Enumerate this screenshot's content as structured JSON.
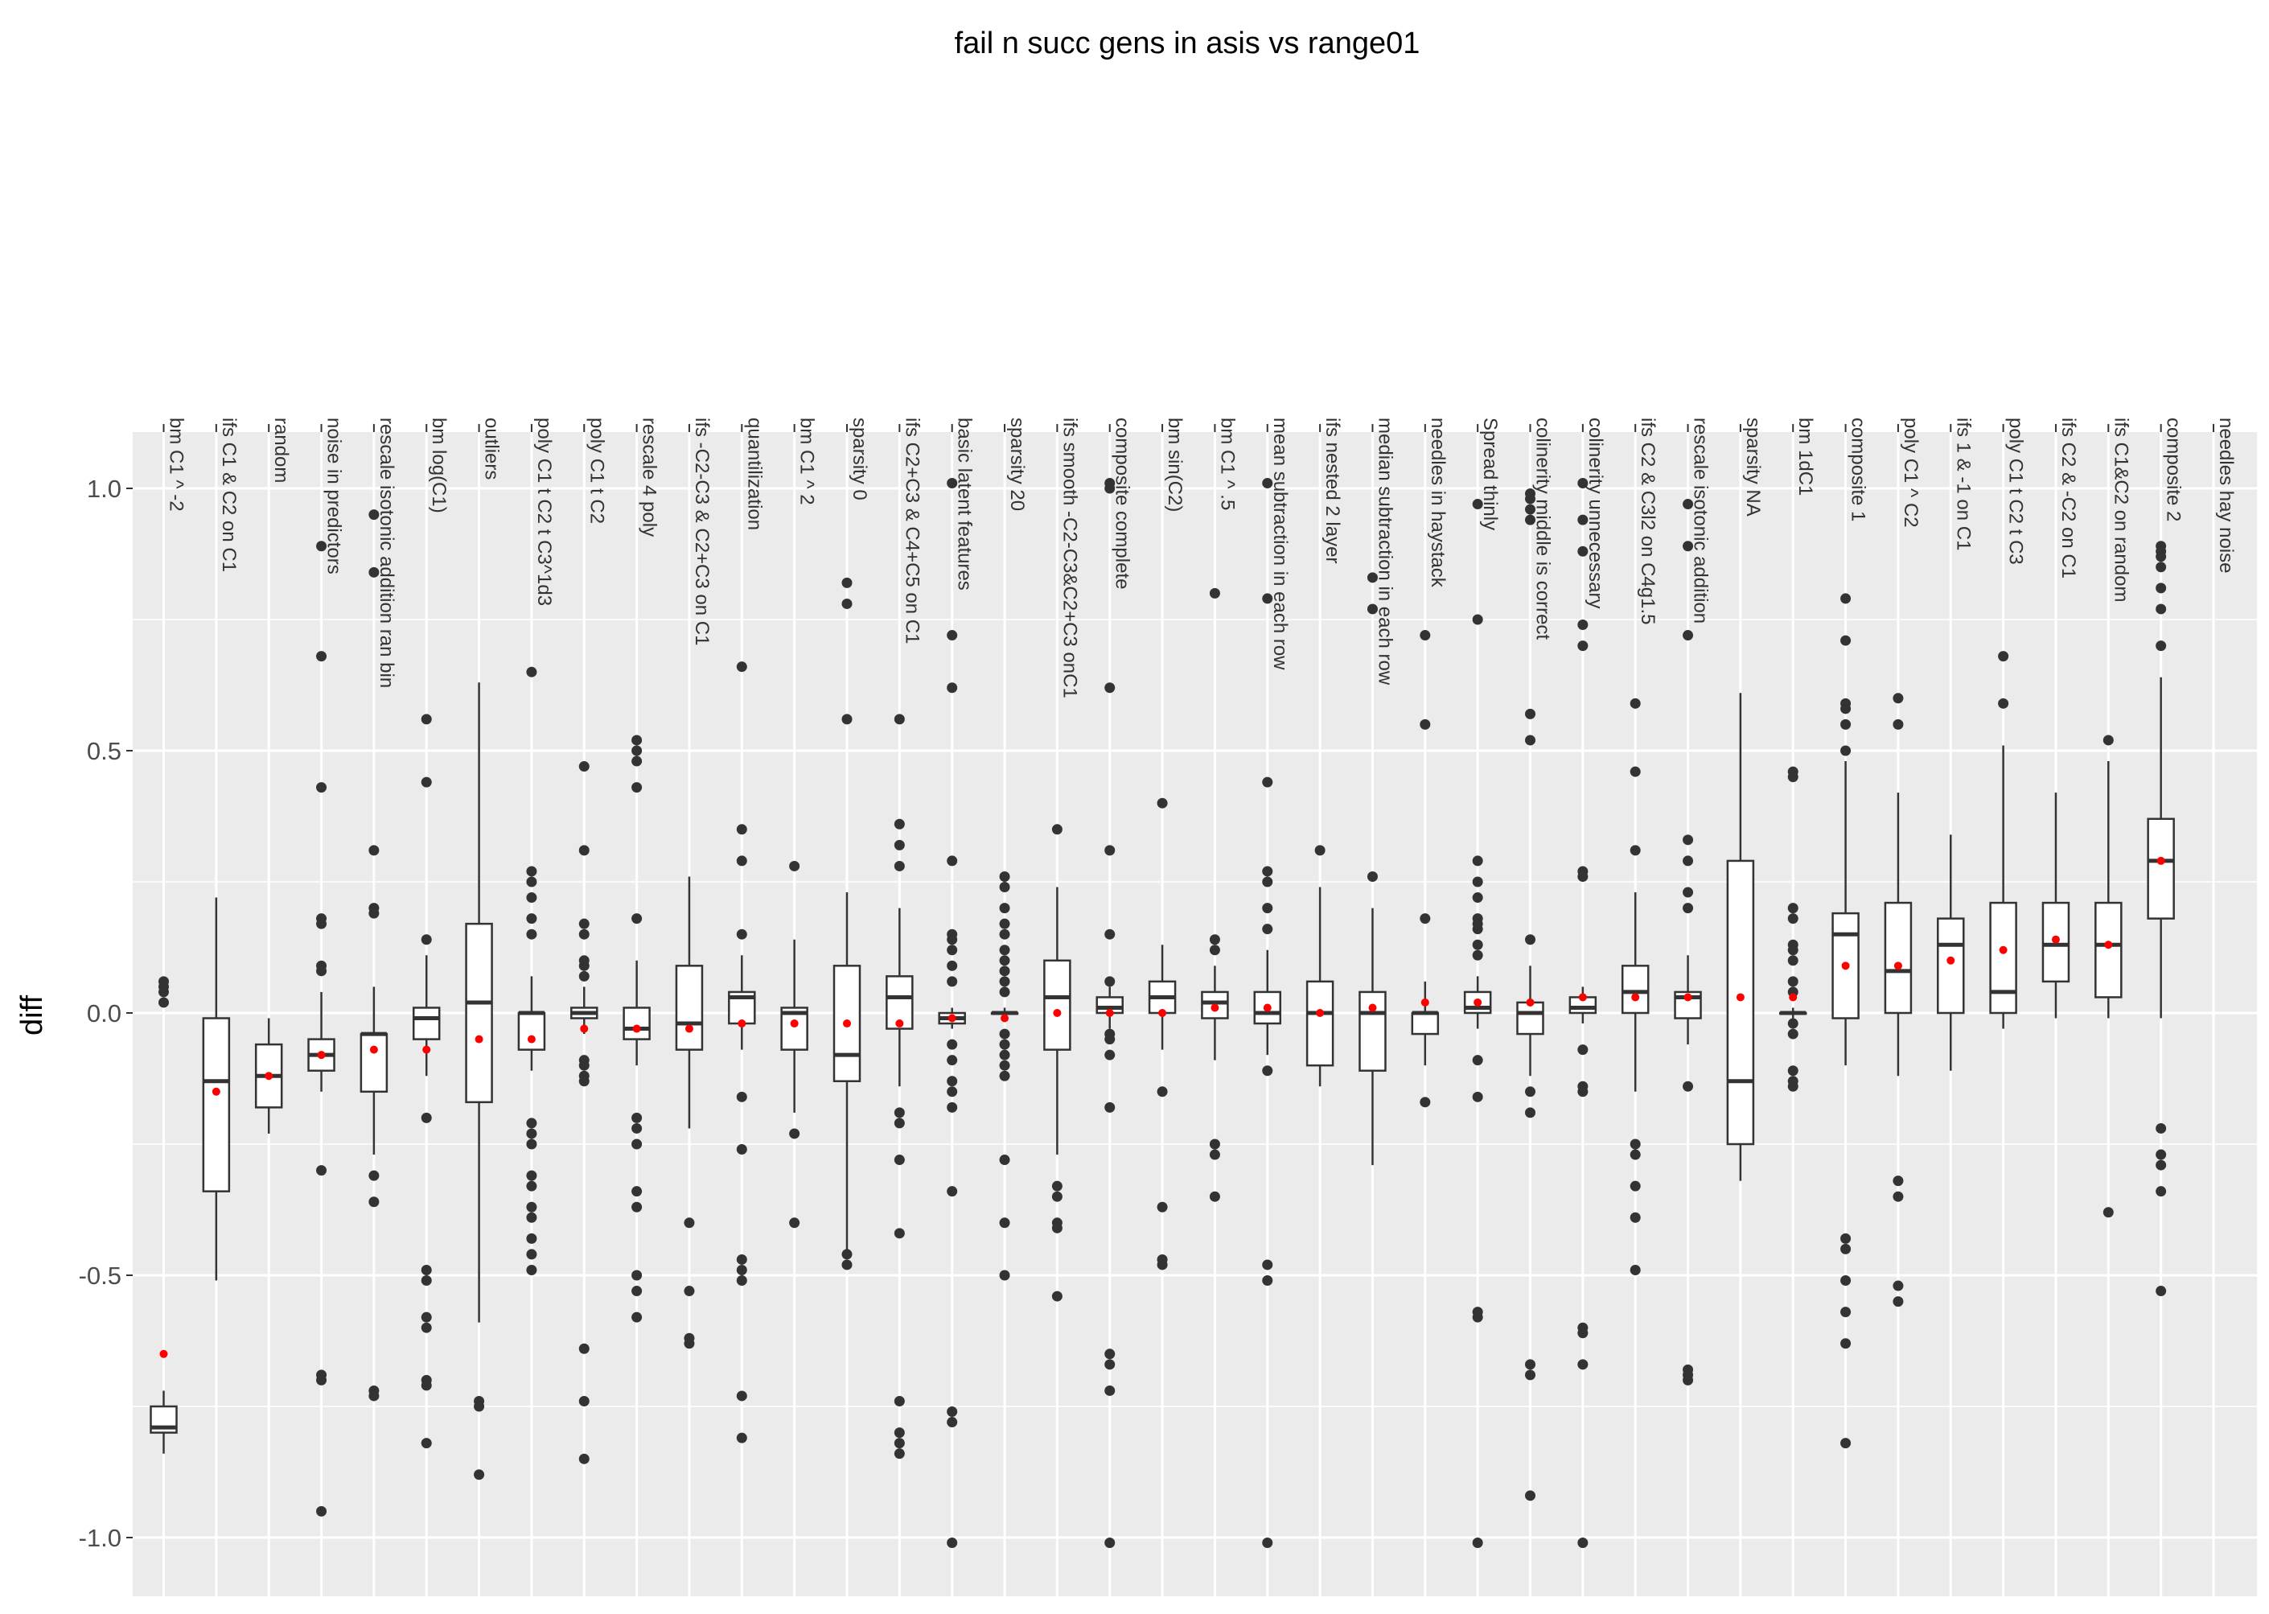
{
  "chart_data": {
    "type": "boxplot",
    "title": "fail n succ gens in asis vs range01",
    "ylabel": "diff",
    "xlabel": "",
    "ylim": [
      -1.07,
      1.08
    ],
    "yticks": [
      1.0,
      0.5,
      0.0,
      -0.5,
      -1.0
    ],
    "ytick_labels": [
      "1.0",
      "0.5",
      "0.0",
      "-0.5",
      "-1.0"
    ],
    "x_axis_position": "top",
    "grid": true,
    "colors": {
      "panel": "#ebebeb",
      "grid": "#ffffff",
      "box_fill": "#ffffff",
      "box_line": "#333333",
      "outlier": "#333333",
      "mean": "#ff0000"
    },
    "categories": [
      {
        "label": "bm C1 ^ -2",
        "q1": -0.8,
        "median": -0.79,
        "q3": -0.75,
        "lo": -0.84,
        "hi": -0.72,
        "mean": -0.65,
        "outliers": [
          0.06,
          0.05,
          0.04,
          0.02
        ]
      },
      {
        "label": "ifs C1 & C2 on C1",
        "q1": -0.34,
        "median": -0.13,
        "q3": -0.01,
        "lo": -0.51,
        "hi": 0.22,
        "mean": -0.15,
        "outliers": []
      },
      {
        "label": "random",
        "q1": -0.18,
        "median": -0.12,
        "q3": -0.06,
        "lo": -0.23,
        "hi": -0.01,
        "mean": -0.12,
        "outliers": []
      },
      {
        "label": "noise in predictors",
        "q1": -0.11,
        "median": -0.08,
        "q3": -0.05,
        "lo": -0.15,
        "hi": 0.04,
        "mean": -0.08,
        "outliers": [
          0.89,
          0.68,
          0.43,
          0.18,
          0.17,
          0.09,
          0.08,
          -0.3,
          -0.69,
          -0.7,
          -0.95
        ]
      },
      {
        "label": "rescale isotonic addition ran bin",
        "q1": -0.15,
        "median": -0.04,
        "q3": -0.04,
        "lo": -0.27,
        "hi": 0.05,
        "mean": -0.07,
        "outliers": [
          0.95,
          0.84,
          0.31,
          0.2,
          0.19,
          -0.31,
          -0.36,
          -0.72,
          -0.73
        ]
      },
      {
        "label": "bm log(C1)",
        "q1": -0.05,
        "median": -0.01,
        "q3": 0.01,
        "lo": -0.12,
        "hi": 0.11,
        "mean": -0.07,
        "outliers": [
          0.56,
          0.44,
          0.14,
          -0.2,
          -0.49,
          -0.51,
          -0.58,
          -0.6,
          -0.7,
          -0.71,
          -0.82
        ]
      },
      {
        "label": "outliers",
        "q1": -0.17,
        "median": 0.02,
        "q3": 0.17,
        "lo": -0.59,
        "hi": 0.63,
        "mean": -0.05,
        "outliers": [
          -0.74,
          -0.75,
          -0.88
        ]
      },
      {
        "label": "poly C1 t C2 t C3^1d3",
        "q1": -0.07,
        "median": 0.0,
        "q3": 0.0,
        "lo": -0.11,
        "hi": 0.07,
        "mean": -0.05,
        "outliers": [
          0.65,
          0.27,
          0.25,
          0.22,
          0.18,
          0.15,
          -0.21,
          -0.23,
          -0.25,
          -0.31,
          -0.33,
          -0.37,
          -0.39,
          -0.43,
          -0.46,
          -0.49
        ]
      },
      {
        "label": "poly C1 t C2",
        "q1": -0.01,
        "median": 0.0,
        "q3": 0.01,
        "lo": -0.04,
        "hi": 0.05,
        "mean": -0.03,
        "outliers": [
          0.47,
          0.31,
          0.17,
          0.15,
          0.1,
          0.09,
          0.07,
          -0.09,
          -0.1,
          -0.12,
          -0.13,
          -0.64,
          -0.74,
          -0.85
        ]
      },
      {
        "label": "rescale 4 poly",
        "q1": -0.05,
        "median": -0.03,
        "q3": 0.01,
        "lo": -0.1,
        "hi": 0.1,
        "mean": -0.03,
        "outliers": [
          0.52,
          0.5,
          0.48,
          0.43,
          0.18,
          -0.2,
          -0.22,
          -0.25,
          -0.34,
          -0.37,
          -0.5,
          -0.53,
          -0.58
        ]
      },
      {
        "label": "ifs -C2-C3 & C2+C3 on C1",
        "q1": -0.07,
        "median": -0.02,
        "q3": 0.09,
        "lo": -0.22,
        "hi": 0.26,
        "mean": -0.03,
        "outliers": [
          -0.4,
          -0.53,
          -0.62,
          -0.63
        ]
      },
      {
        "label": "quantilization",
        "q1": -0.02,
        "median": 0.03,
        "q3": 0.04,
        "lo": -0.07,
        "hi": 0.11,
        "mean": -0.02,
        "outliers": [
          0.66,
          0.35,
          0.29,
          0.15,
          -0.16,
          -0.26,
          -0.47,
          -0.49,
          -0.51,
          -0.73,
          -0.81
        ]
      },
      {
        "label": "bm C1 ^ 2",
        "q1": -0.07,
        "median": 0.0,
        "q3": 0.01,
        "lo": -0.19,
        "hi": 0.14,
        "mean": -0.02,
        "outliers": [
          0.28,
          -0.23,
          -0.4
        ]
      },
      {
        "label": "sparsity 0",
        "q1": -0.13,
        "median": -0.08,
        "q3": 0.09,
        "lo": -0.46,
        "hi": 0.23,
        "mean": -0.02,
        "outliers": [
          0.82,
          0.78,
          0.56,
          -0.46,
          -0.48
        ]
      },
      {
        "label": "ifs C2+C3 & C4+C5 on C1",
        "q1": -0.03,
        "median": 0.03,
        "q3": 0.07,
        "lo": -0.14,
        "hi": 0.2,
        "mean": -0.02,
        "outliers": [
          0.56,
          0.36,
          0.32,
          0.28,
          -0.19,
          -0.21,
          -0.28,
          -0.42,
          -0.74,
          -0.8,
          -0.82,
          -0.84
        ]
      },
      {
        "label": "basic latent features",
        "q1": -0.02,
        "median": -0.01,
        "q3": 0.0,
        "lo": -0.03,
        "hi": 0.01,
        "mean": -0.01,
        "outliers": [
          1.01,
          0.72,
          0.62,
          0.29,
          0.15,
          0.14,
          0.12,
          0.09,
          0.06,
          -0.06,
          -0.09,
          -0.13,
          -0.15,
          -0.18,
          -0.34,
          -0.76,
          -0.78,
          -1.01
        ]
      },
      {
        "label": "sparsity 20",
        "q1": 0.0,
        "median": 0.0,
        "q3": 0.0,
        "lo": -0.01,
        "hi": 0.01,
        "mean": -0.01,
        "outliers": [
          0.26,
          0.24,
          0.2,
          0.17,
          0.15,
          0.12,
          0.1,
          0.08,
          0.06,
          0.04,
          -0.04,
          -0.06,
          -0.08,
          -0.1,
          -0.12,
          -0.28,
          -0.4,
          -0.5
        ]
      },
      {
        "label": "ifs smooth -C2-C3&C2+C3 onC1",
        "q1": -0.07,
        "median": 0.03,
        "q3": 0.1,
        "lo": -0.27,
        "hi": 0.24,
        "mean": 0.0,
        "outliers": [
          0.35,
          -0.33,
          -0.35,
          -0.4,
          -0.41,
          -0.54
        ]
      },
      {
        "label": "composite complete",
        "q1": 0.0,
        "median": 0.01,
        "q3": 0.03,
        "lo": -0.03,
        "hi": 0.05,
        "mean": 0.0,
        "outliers": [
          1.01,
          1.0,
          0.62,
          0.31,
          0.15,
          0.06,
          -0.04,
          -0.05,
          -0.08,
          -0.18,
          -0.65,
          -0.67,
          -0.72,
          -1.01
        ]
      },
      {
        "label": "bm sin(C2)",
        "q1": 0.0,
        "median": 0.03,
        "q3": 0.06,
        "lo": -0.07,
        "hi": 0.13,
        "mean": 0.0,
        "outliers": [
          0.4,
          -0.15,
          -0.37,
          -0.47,
          -0.48
        ]
      },
      {
        "label": "bm C1 ^ .5",
        "q1": -0.01,
        "median": 0.02,
        "q3": 0.04,
        "lo": -0.09,
        "hi": 0.09,
        "mean": 0.01,
        "outliers": [
          0.8,
          0.14,
          0.12,
          -0.25,
          -0.27,
          -0.35
        ]
      },
      {
        "label": "mean subtraction in each row",
        "q1": -0.02,
        "median": 0.0,
        "q3": 0.04,
        "lo": -0.08,
        "hi": 0.12,
        "mean": 0.01,
        "outliers": [
          1.01,
          0.79,
          0.44,
          0.27,
          0.25,
          0.2,
          0.16,
          -0.11,
          -0.48,
          -0.51,
          -1.01
        ]
      },
      {
        "label": "ifs nested 2 layer",
        "q1": -0.1,
        "median": 0.0,
        "q3": 0.06,
        "lo": -0.14,
        "hi": 0.24,
        "mean": 0.0,
        "outliers": [
          0.31
        ]
      },
      {
        "label": "median subtraction in each row",
        "q1": -0.11,
        "median": 0.0,
        "q3": 0.04,
        "lo": -0.29,
        "hi": 0.2,
        "mean": 0.01,
        "outliers": [
          0.83,
          0.77,
          0.26
        ]
      },
      {
        "label": "needles in haystack",
        "q1": -0.04,
        "median": 0.0,
        "q3": 0.0,
        "lo": -0.1,
        "hi": 0.06,
        "mean": 0.02,
        "outliers": [
          0.72,
          0.55,
          0.18,
          -0.17
        ]
      },
      {
        "label": "Spread thinly",
        "q1": 0.0,
        "median": 0.01,
        "q3": 0.04,
        "lo": -0.03,
        "hi": 0.07,
        "mean": 0.02,
        "outliers": [
          0.97,
          0.75,
          0.29,
          0.25,
          0.22,
          0.18,
          0.17,
          0.16,
          0.13,
          0.11,
          -0.09,
          -0.16,
          -0.57,
          -0.58,
          -1.01
        ]
      },
      {
        "label": "colinerity middle is correct",
        "q1": -0.04,
        "median": 0.0,
        "q3": 0.02,
        "lo": -0.12,
        "hi": 0.09,
        "mean": 0.02,
        "outliers": [
          0.99,
          0.98,
          0.96,
          0.94,
          0.57,
          0.52,
          0.14,
          -0.15,
          -0.19,
          -0.67,
          -0.69,
          -0.92
        ]
      },
      {
        "label": "colinerity unnecessary",
        "q1": 0.0,
        "median": 0.01,
        "q3": 0.03,
        "lo": -0.02,
        "hi": 0.05,
        "mean": 0.03,
        "outliers": [
          1.01,
          0.94,
          0.88,
          0.74,
          0.7,
          0.27,
          0.26,
          -0.07,
          -0.14,
          -0.15,
          -0.6,
          -0.61,
          -0.67,
          -1.01
        ]
      },
      {
        "label": "ifs C2 & C3l2 on C4g1.5",
        "q1": 0.0,
        "median": 0.04,
        "q3": 0.09,
        "lo": -0.15,
        "hi": 0.23,
        "mean": 0.03,
        "outliers": [
          0.59,
          0.46,
          0.31,
          -0.25,
          -0.27,
          -0.33,
          -0.39,
          -0.49
        ]
      },
      {
        "label": "rescale isotonic addition",
        "q1": -0.01,
        "median": 0.03,
        "q3": 0.04,
        "lo": -0.06,
        "hi": 0.11,
        "mean": 0.03,
        "outliers": [
          0.97,
          0.89,
          0.72,
          0.33,
          0.29,
          0.23,
          0.2,
          -0.14,
          -0.68,
          -0.69,
          -0.7
        ]
      },
      {
        "label": "sparsity NA",
        "q1": -0.25,
        "median": -0.13,
        "q3": 0.29,
        "lo": -0.32,
        "hi": 0.61,
        "mean": 0.03,
        "outliers": []
      },
      {
        "label": "bm 1dC1",
        "q1": 0.0,
        "median": 0.0,
        "q3": 0.0,
        "lo": -0.01,
        "hi": 0.01,
        "mean": 0.03,
        "outliers": [
          0.46,
          0.45,
          0.2,
          0.18,
          0.13,
          0.12,
          0.1,
          0.06,
          0.04,
          -0.02,
          -0.04,
          -0.11,
          -0.13,
          -0.14
        ]
      },
      {
        "label": "composite 1",
        "q1": -0.01,
        "median": 0.15,
        "q3": 0.19,
        "lo": -0.1,
        "hi": 0.48,
        "mean": 0.09,
        "outliers": [
          0.79,
          0.71,
          0.59,
          0.58,
          0.55,
          0.5,
          -0.43,
          -0.45,
          -0.51,
          -0.57,
          -0.63,
          -0.82
        ]
      },
      {
        "label": "poly C1 ^ C2",
        "q1": 0.0,
        "median": 0.08,
        "q3": 0.21,
        "lo": -0.12,
        "hi": 0.42,
        "mean": 0.09,
        "outliers": [
          0.6,
          0.55,
          -0.32,
          -0.35,
          -0.52,
          -0.55
        ]
      },
      {
        "label": "ifs 1 & -1 on C1",
        "q1": 0.0,
        "median": 0.13,
        "q3": 0.18,
        "lo": -0.11,
        "hi": 0.34,
        "mean": 0.1,
        "outliers": []
      },
      {
        "label": "poly C1 t C2 t C3",
        "q1": 0.0,
        "median": 0.04,
        "q3": 0.21,
        "lo": -0.03,
        "hi": 0.51,
        "mean": 0.12,
        "outliers": [
          0.68,
          0.59
        ]
      },
      {
        "label": "ifs C2 & -C2 on C1",
        "q1": 0.06,
        "median": 0.13,
        "q3": 0.21,
        "lo": -0.01,
        "hi": 0.42,
        "mean": 0.14,
        "outliers": []
      },
      {
        "label": "ifs C1&C2 on random",
        "q1": 0.03,
        "median": 0.13,
        "q3": 0.21,
        "lo": -0.01,
        "hi": 0.48,
        "mean": 0.13,
        "outliers": [
          0.52,
          -0.38
        ]
      },
      {
        "label": "composite 2",
        "q1": 0.18,
        "median": 0.29,
        "q3": 0.37,
        "lo": -0.01,
        "hi": 0.64,
        "mean": 0.29,
        "outliers": [
          0.89,
          0.88,
          0.87,
          0.85,
          0.81,
          0.77,
          0.7,
          -0.22,
          -0.27,
          -0.29,
          -0.34,
          -0.53
        ]
      },
      {
        "label": "needles hay noise",
        "q1": null,
        "median": null,
        "q3": null,
        "lo": null,
        "hi": null,
        "mean": null,
        "outliers": []
      }
    ]
  }
}
